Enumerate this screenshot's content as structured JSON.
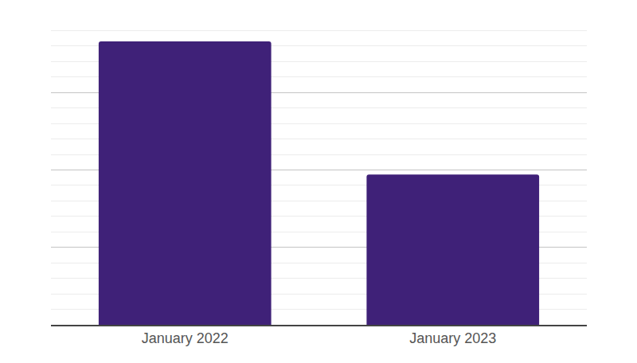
{
  "chart_data": {
    "type": "bar",
    "categories": [
      "January 2022",
      "January 2023"
    ],
    "values": [
      18.3,
      9.7
    ],
    "color": "#3f2178",
    "ylim": [
      0,
      20
    ],
    "yticks": [
      0,
      5,
      10,
      15,
      20
    ],
    "grid": true,
    "tick_labels": "x"
  }
}
